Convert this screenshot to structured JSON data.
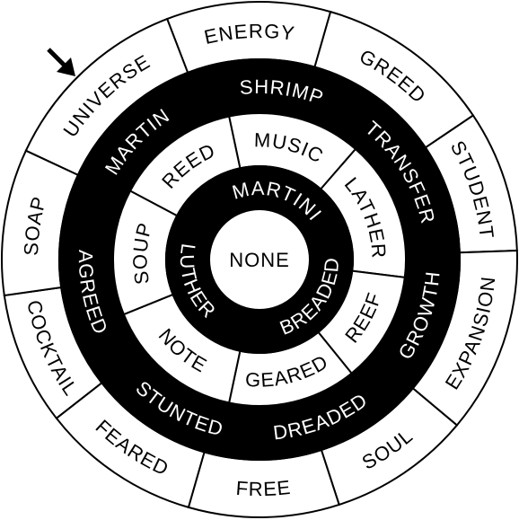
{
  "puzzle": {
    "rings": [
      {
        "name": "outer",
        "style": "white",
        "words": [
          "ENERGY",
          "GREED",
          "STUDENT",
          "EXPANSION",
          "SOUL",
          "FREE",
          "FEARED",
          "COCKTAIL",
          "SOAP",
          "UNIVERSE"
        ]
      },
      {
        "name": "ring-2",
        "segments": [
          {
            "word": "SHRIMP",
            "style": "black"
          },
          {
            "word": "TRANSFER",
            "style": "black"
          },
          {
            "word": "GROWTH",
            "style": "black"
          },
          {
            "word": "DREADED",
            "style": "black"
          },
          {
            "word": "STUNTED",
            "style": "black"
          },
          {
            "word": "AGREED",
            "style": "black"
          },
          {
            "word": "MARTIN",
            "style": "black"
          }
        ]
      },
      {
        "name": "ring-3",
        "segments": [
          {
            "word": "MUSIC",
            "style": "white"
          },
          {
            "word": "LATHER",
            "style": "white"
          },
          {
            "word": "REEF",
            "style": "white"
          },
          {
            "word": "GEARED",
            "style": "white"
          },
          {
            "word": "NOTE",
            "style": "white"
          },
          {
            "word": "SOUP",
            "style": "white"
          },
          {
            "word": "REED",
            "style": "white"
          }
        ]
      },
      {
        "name": "ring-4",
        "segments": [
          {
            "word": "MARTINI",
            "style": "black"
          },
          {
            "word": "BREADED",
            "style": "black"
          },
          {
            "word": "LUTHER",
            "style": "black"
          }
        ]
      }
    ],
    "center_word": "NONE",
    "start_marker": "arrow-down-right-icon",
    "colors": {
      "ink": "#000000",
      "paper": "#ffffff"
    }
  }
}
